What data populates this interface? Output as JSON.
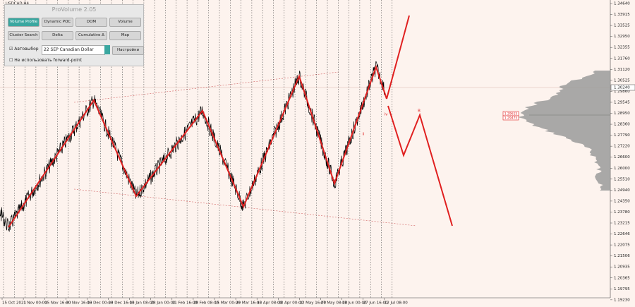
{
  "header": {
    "symbol": "USDCAD,H4"
  },
  "panel": {
    "title": "ProVolume 2.05",
    "buttons": [
      "Volume Profile",
      "Dynamic POC",
      "DOM",
      "Volume",
      "Cluster Search",
      "Delta",
      "Cumulative Δ",
      "Map"
    ],
    "auto_select": "Автовыбор",
    "instrument": "22 SEP Canadian Dollar",
    "settings": "Настройки",
    "forward_point": "Не использовать forward-point"
  },
  "price_axis": [
    "1.34640",
    "1.33915",
    "1.33525",
    "1.32950",
    "1.32355",
    "1.31760",
    "1.31120",
    "1.30525",
    "1.29860",
    "1.29545",
    "1.28950",
    "1.28360",
    "1.27790",
    "1.27220",
    "1.26600",
    "1.26000",
    "1.25510",
    "1.24940",
    "1.24350",
    "1.23780",
    "1.23215",
    "1.22646",
    "1.22075",
    "1.21506",
    "1.20935",
    "1.20365",
    "1.19795",
    "1.19230"
  ],
  "current_price": "1.30240",
  "time_axis": [
    "15 Oct 2021",
    "1 Nov 00:00",
    "15 Nov 16:00",
    "30 Nov 16:00",
    "15 Dec 00:00",
    "29 Dec 16:00",
    "13 Jan 08:00",
    "28 Jan 00:00",
    "11 Feb 16:00",
    "28 Feb 08:00",
    "15 Mar 00:00",
    "29 Mar 16:00",
    "13 Apr 08:00",
    "28 Apr 00:00",
    "12 May 16:00",
    "27 May 08:00",
    "13 Jun 00:00",
    "27 Jun 16:00",
    "12 Jul 08:00"
  ],
  "wave_labels": [
    "ii",
    "iv",
    "B"
  ],
  "level_boxes": [
    "1.29615",
    "1.29475"
  ]
}
